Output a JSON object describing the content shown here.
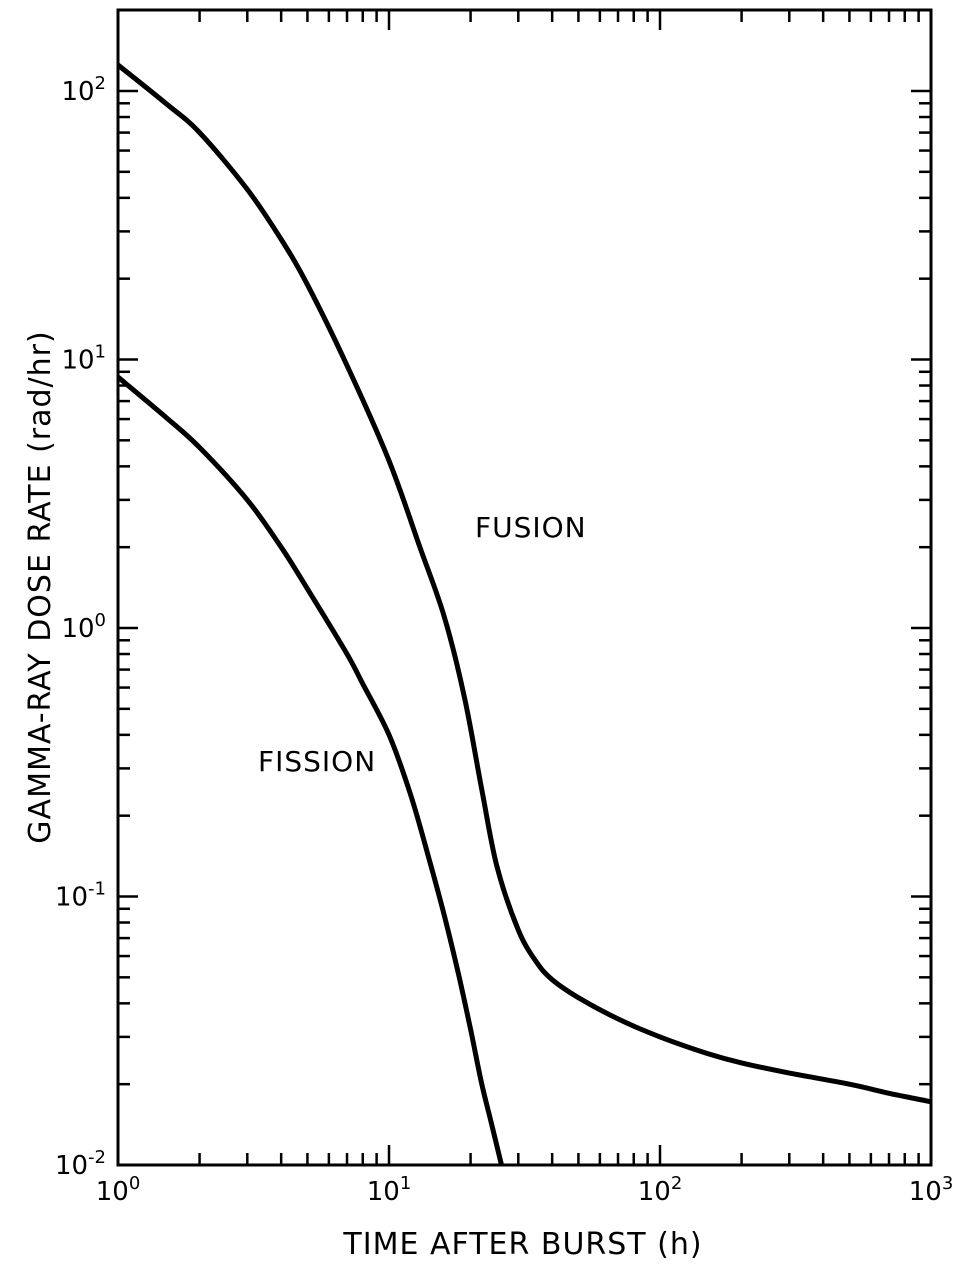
{
  "chart_data": {
    "type": "line",
    "xlabel": "TIME AFTER BURST (h)",
    "ylabel": "GAMMA-RAY DOSE RATE (rad/hr)",
    "xscale": "log",
    "yscale": "log",
    "xlim": [
      1,
      1000
    ],
    "ylim": [
      0.01,
      200
    ],
    "grid": false,
    "x_ticks": [
      {
        "base": "10",
        "exp": "0",
        "value": 1
      },
      {
        "base": "10",
        "exp": "1",
        "value": 10
      },
      {
        "base": "10",
        "exp": "2",
        "value": 100
      },
      {
        "base": "10",
        "exp": "3",
        "value": 1000
      }
    ],
    "y_ticks": [
      {
        "base": "10",
        "exp": "-2",
        "value": 0.01
      },
      {
        "base": "10",
        "exp": "-1",
        "value": 0.1
      },
      {
        "base": "10",
        "exp": "0",
        "value": 1
      },
      {
        "base": "10",
        "exp": "1",
        "value": 10
      },
      {
        "base": "10",
        "exp": "2",
        "value": 100
      }
    ],
    "series": [
      {
        "name": "FUSION",
        "x": [
          1,
          1.5,
          2,
          3,
          4,
          5,
          7,
          10,
          13,
          16,
          19,
          22,
          25,
          30,
          35,
          40,
          50,
          70,
          100,
          150,
          200,
          300,
          500,
          700,
          1000
        ],
        "y": [
          125,
          90,
          70,
          43,
          28,
          19,
          9.5,
          4.2,
          2.0,
          1.1,
          0.55,
          0.25,
          0.13,
          0.075,
          0.057,
          0.049,
          0.042,
          0.035,
          0.03,
          0.026,
          0.024,
          0.022,
          0.02,
          0.0185,
          0.0172
        ]
      },
      {
        "name": "FISSION",
        "x": [
          1,
          1.5,
          2,
          3,
          4,
          5,
          7,
          8,
          10,
          12,
          14,
          16,
          18,
          20,
          22,
          24,
          26
        ],
        "y": [
          8.6,
          6.1,
          4.7,
          3.0,
          2.0,
          1.4,
          0.8,
          0.62,
          0.4,
          0.24,
          0.14,
          0.085,
          0.052,
          0.032,
          0.02,
          0.014,
          0.01
        ]
      }
    ]
  }
}
